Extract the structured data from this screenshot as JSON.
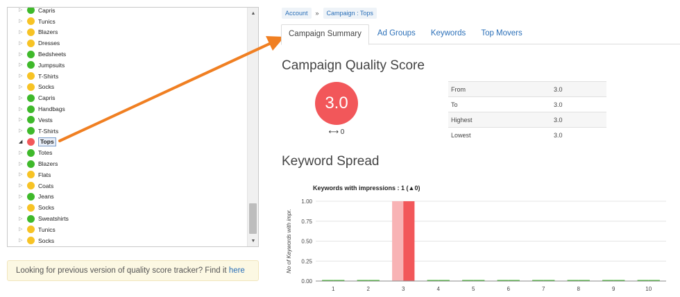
{
  "tree": {
    "items": [
      {
        "label": "Capris",
        "color": "green",
        "expanded": false
      },
      {
        "label": "Tunics",
        "color": "yellow",
        "expanded": false
      },
      {
        "label": "Blazers",
        "color": "yellow",
        "expanded": false
      },
      {
        "label": "Dresses",
        "color": "yellow",
        "expanded": false
      },
      {
        "label": "Bedsheets",
        "color": "green",
        "expanded": false
      },
      {
        "label": "Jumpsuits",
        "color": "green",
        "expanded": false
      },
      {
        "label": "T-Shirts",
        "color": "yellow",
        "expanded": false
      },
      {
        "label": "Socks",
        "color": "yellow",
        "expanded": false
      },
      {
        "label": "Capris",
        "color": "green",
        "expanded": false
      },
      {
        "label": "Handbags",
        "color": "green",
        "expanded": false
      },
      {
        "label": "Vests",
        "color": "green",
        "expanded": false
      },
      {
        "label": "T-Shirts",
        "color": "green",
        "expanded": false
      },
      {
        "label": "Tops",
        "color": "red",
        "expanded": true,
        "selected": true
      },
      {
        "label": "Totes",
        "color": "green",
        "expanded": false
      },
      {
        "label": "Blazers",
        "color": "green",
        "expanded": false
      },
      {
        "label": "Flats",
        "color": "yellow",
        "expanded": false
      },
      {
        "label": "Coats",
        "color": "yellow",
        "expanded": false
      },
      {
        "label": "Jeans",
        "color": "green",
        "expanded": false
      },
      {
        "label": "Socks",
        "color": "yellow",
        "expanded": false
      },
      {
        "label": "Sweatshirts",
        "color": "green",
        "expanded": false
      },
      {
        "label": "Tunics",
        "color": "yellow",
        "expanded": false
      },
      {
        "label": "Socks",
        "color": "yellow",
        "expanded": false
      }
    ],
    "status_colors": {
      "green": "#3fb92b",
      "yellow": "#f7c325",
      "red": "#f2575a"
    }
  },
  "notice": {
    "text": "Looking for previous version of quality score tracker? Find it ",
    "link": "here"
  },
  "breadcrumb": {
    "items": [
      "Account",
      "Campaign : Tops"
    ],
    "separator": "»"
  },
  "tabs": [
    "Campaign Summary",
    "Ad Groups",
    "Keywords",
    "Top Movers"
  ],
  "active_tab": "Campaign Summary",
  "quality_score": {
    "title": "Campaign Quality Score",
    "score": "3.0",
    "change_icon": "left-right-arrow-icon",
    "change": "⟷ 0",
    "rows": [
      {
        "label": "From",
        "value": "3.0"
      },
      {
        "label": "To",
        "value": "3.0"
      },
      {
        "label": "Highest",
        "value": "3.0"
      },
      {
        "label": "Lowest",
        "value": "3.0"
      }
    ]
  },
  "keyword_spread": {
    "title": "Keyword Spread"
  },
  "chart_data": {
    "type": "bar",
    "title": "Keywords with impressions : 1 (▲0)",
    "ylabel": "No of Keywords with impr.",
    "xlabel": "",
    "categories": [
      "1",
      "2",
      "3",
      "4",
      "5",
      "6",
      "7",
      "8",
      "9",
      "10"
    ],
    "series": [
      {
        "values": [
          0,
          0,
          1,
          0,
          0,
          0,
          0,
          0,
          0,
          0
        ],
        "color": "#f8b3b5"
      },
      {
        "values": [
          0,
          0,
          1,
          0,
          0,
          0,
          0,
          0,
          0,
          0
        ],
        "color": "#f2575a"
      }
    ],
    "ylim": [
      0,
      1
    ],
    "yticks": [
      "0.00",
      "0.25",
      "0.50",
      "0.75",
      "1.00"
    ],
    "grid": true
  }
}
